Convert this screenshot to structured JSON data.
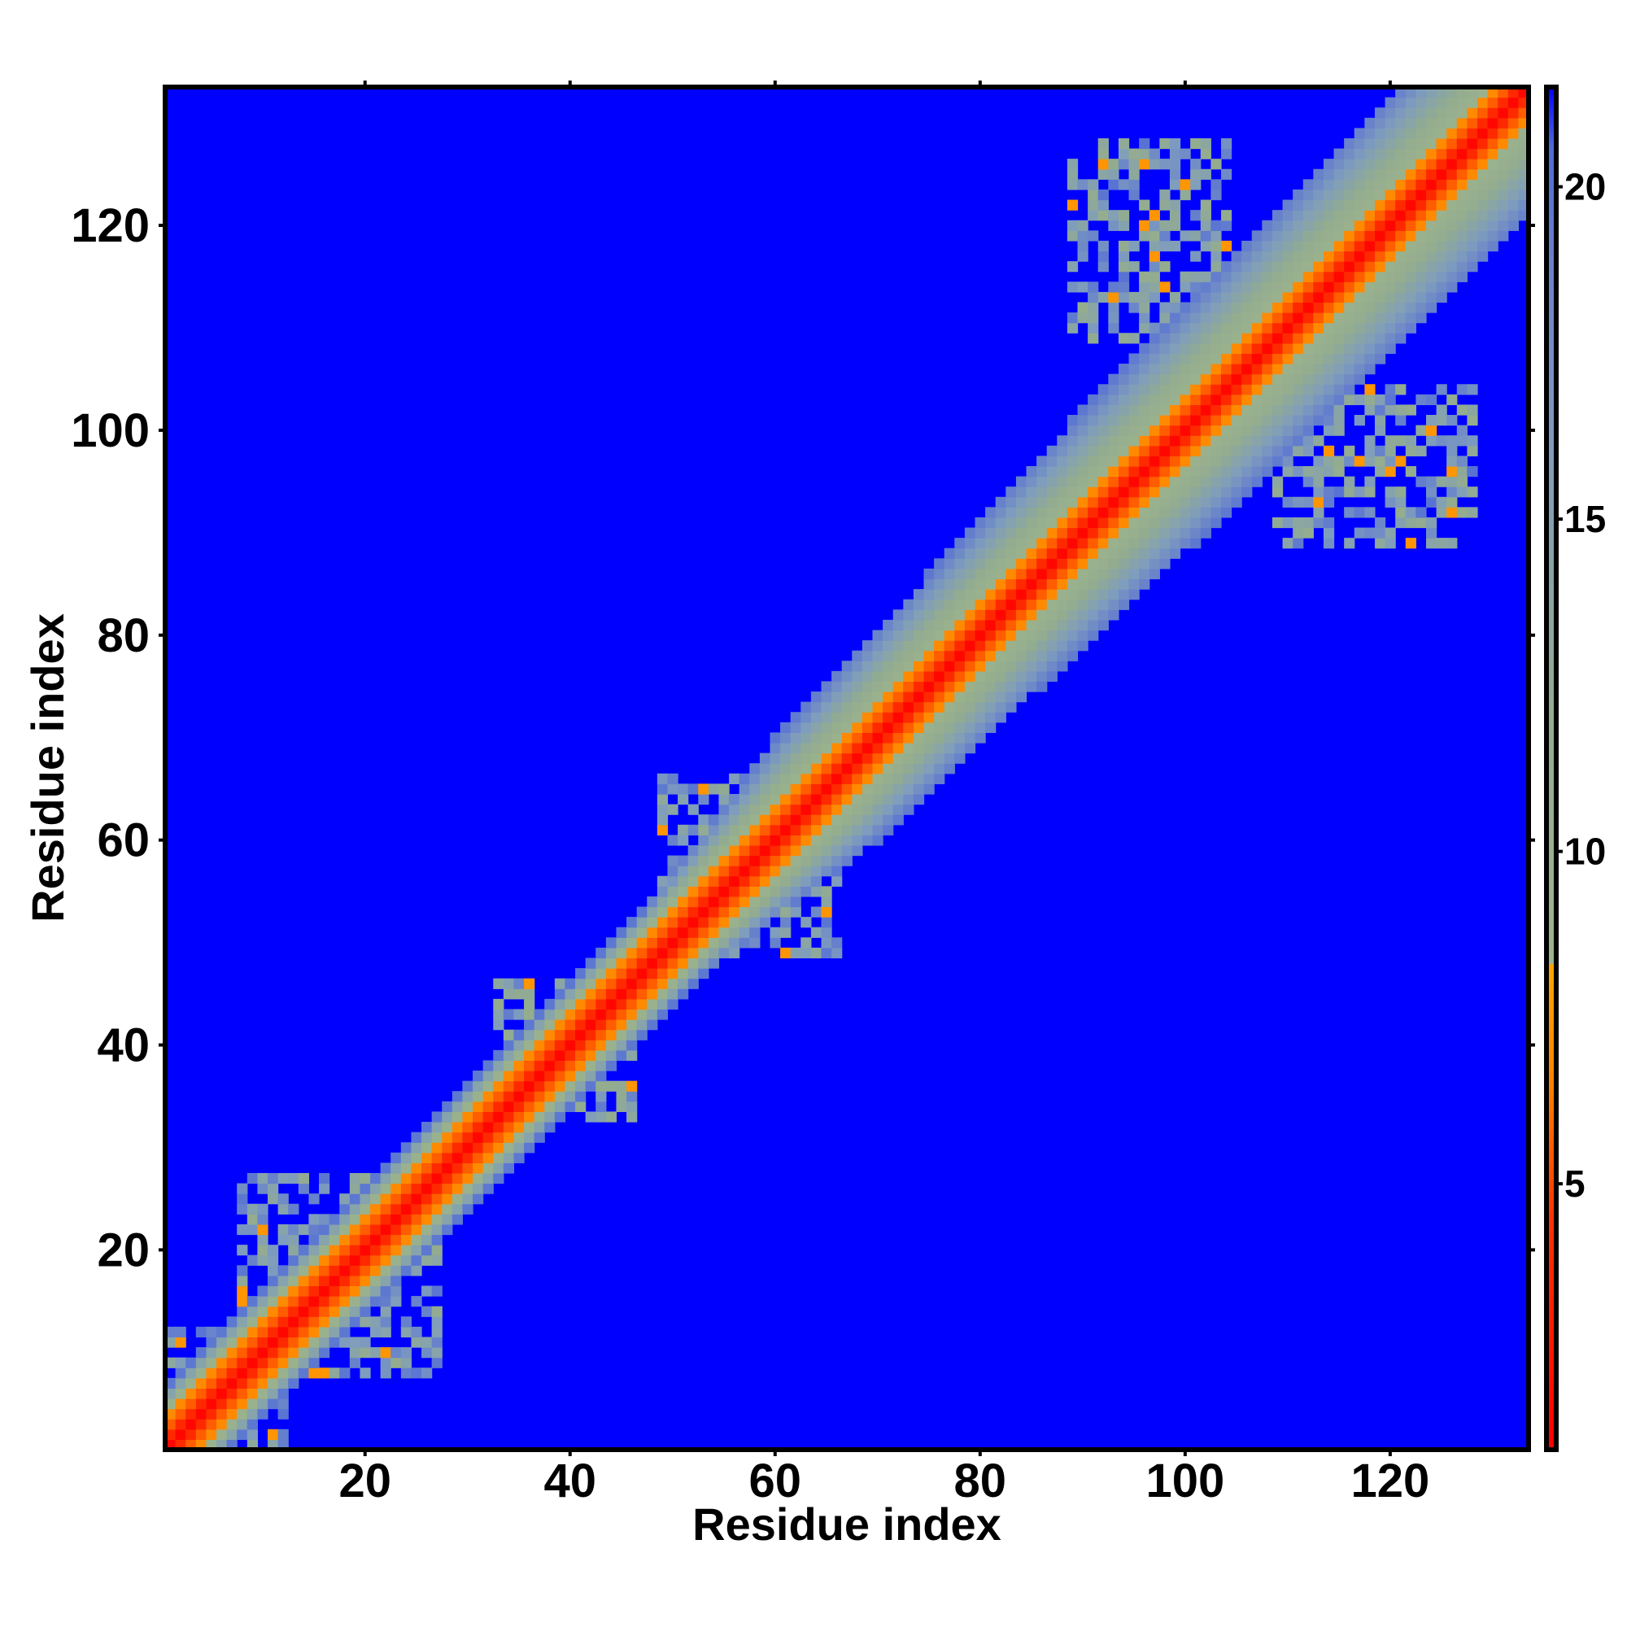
{
  "chart_data": {
    "type": "heatmap",
    "title": "",
    "xlabel": "Residue index",
    "ylabel": "Residue index",
    "n_residues": 133,
    "xlim": [
      0.5,
      133.5
    ],
    "ylim": [
      0.5,
      133.5
    ],
    "x_ticks": [
      20,
      40,
      60,
      80,
      100,
      120
    ],
    "y_ticks": [
      20,
      40,
      60,
      80,
      100,
      120
    ],
    "colorbar": {
      "range": [
        1,
        21.5
      ],
      "ticks": [
        5,
        10,
        15,
        20
      ],
      "stops": [
        {
          "value": 1,
          "color": "#ff0000"
        },
        {
          "value": 4.5,
          "color": "#ff3300"
        },
        {
          "value": 6.5,
          "color": "#ff8000"
        },
        {
          "value": 8.3,
          "color": "#ffa500"
        },
        {
          "value": 8.31,
          "color": "#9cb38c"
        },
        {
          "value": 12,
          "color": "#93ac8f"
        },
        {
          "value": 16,
          "color": "#7f9dbd"
        },
        {
          "value": 19,
          "color": "#6680cc"
        },
        {
          "value": 20.6,
          "color": "#4e6ad8"
        },
        {
          "value": 21.5,
          "color": "#0000ff"
        }
      ]
    },
    "band_profile": [
      {
        "offset": 0,
        "distance": 1.5
      },
      {
        "offset": 1,
        "distance": 3.8
      },
      {
        "offset": 2,
        "distance": 5.6
      },
      {
        "offset": 3,
        "distance": 7.0
      },
      {
        "offset": 4,
        "distance": 9.2
      },
      {
        "offset": 5,
        "distance": 10.6
      },
      {
        "offset": 6,
        "distance": 11.6
      },
      {
        "offset": 7,
        "distance": 12.8
      },
      {
        "offset": 8,
        "distance": 14.2
      },
      {
        "offset": 9,
        "distance": 15.6
      },
      {
        "offset": 10,
        "distance": 17.0
      },
      {
        "offset": 11,
        "distance": 18.4
      },
      {
        "offset": 12,
        "distance": 19.8
      }
    ],
    "band_halfwidth": [
      {
        "residue": 1,
        "halfwidth": 6
      },
      {
        "residue": 50,
        "halfwidth": 6
      },
      {
        "residue": 65,
        "halfwidth": 10
      },
      {
        "residue": 95,
        "halfwidth": 12
      },
      {
        "residue": 133,
        "halfwidth": 13
      }
    ],
    "background_distance": 21.5,
    "contact_clusters": [
      {
        "x": [
          1,
          12
        ],
        "y": [
          1,
          12
        ],
        "density": 0.55
      },
      {
        "x": [
          13,
          27
        ],
        "y": [
          8,
          24
        ],
        "density": 0.5
      },
      {
        "x": [
          34,
          46
        ],
        "y": [
          33,
          45
        ],
        "density": 0.5
      },
      {
        "x": [
          52,
          66
        ],
        "y": [
          49,
          64
        ],
        "density": 0.55
      },
      {
        "x": [
          91,
          104
        ],
        "y": [
          109,
          128
        ],
        "density": 0.55
      },
      {
        "x": [
          109,
          126
        ],
        "y": [
          89,
          104
        ],
        "density": 0.55
      }
    ]
  }
}
